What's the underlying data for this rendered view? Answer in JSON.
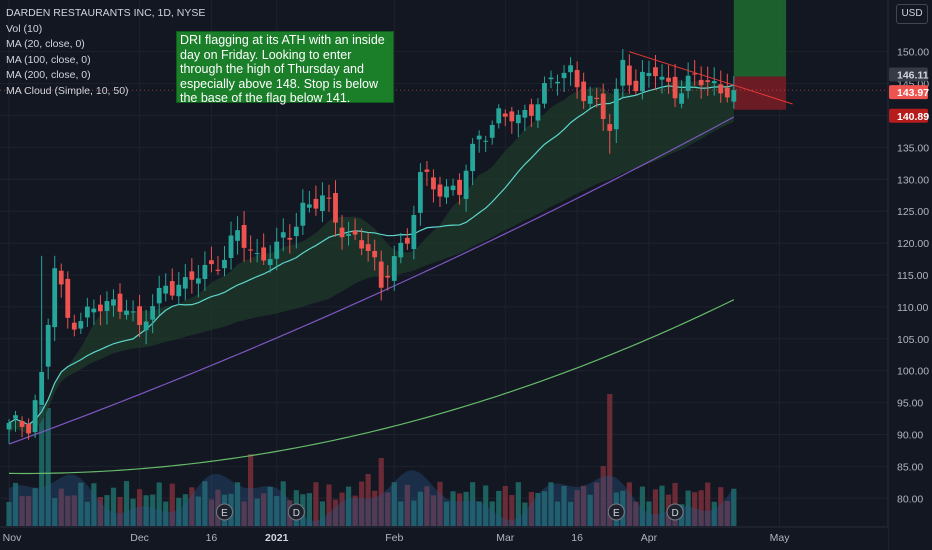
{
  "legend": {
    "title": "DARDEN RESTAURANTS INC, 1D, NYSE",
    "vol": "Vol (10)",
    "ma20": "MA (20, close, 0)",
    "ma100": "MA (100, close, 0)",
    "ma200": "MA (200, close, 0)",
    "ma_cloud": "MA Cloud (Simple, 10, 50)"
  },
  "note": "DRI flagging at its ATH with an inside day on Friday. Looking to enter through the high of Thursday and especially above 148. Stop is below the base of the flag below 141.",
  "currency": "USD",
  "colors": {
    "background": "#131722",
    "up": "#26a69a",
    "down": "#ef5350",
    "ma20": "#5dd6cc",
    "ma100": "#7e57c2",
    "ma200": "#66bb6a",
    "vol_ma": "#2a5a8c",
    "cloud": "#1f3b2a",
    "trendline": "#e53935",
    "target_box": "#1e6f2f",
    "stop_box": "#7a1c24",
    "note_bg": "#1b7f2a"
  },
  "chart_data": {
    "type": "candlestick",
    "ylim": [
      75.5,
      157
    ],
    "y_ticks": [
      80,
      85,
      90,
      95,
      100,
      105,
      110,
      115,
      120,
      125,
      130,
      135,
      140,
      145,
      150
    ],
    "price_labels": [
      {
        "value": 146.11,
        "label": "146.11",
        "kind": "high"
      },
      {
        "value": 143.97,
        "label": "143.97",
        "kind": "last"
      },
      {
        "value": 140.89,
        "label": "140.89",
        "kind": "stop"
      }
    ],
    "x_ticks": [
      {
        "bar": 0,
        "label": "Nov"
      },
      {
        "bar": 20,
        "label": "Dec"
      },
      {
        "bar": 31,
        "label": "16"
      },
      {
        "bar": 41,
        "label": "2021"
      },
      {
        "bar": 59,
        "label": "Feb"
      },
      {
        "bar": 76,
        "label": "Mar"
      },
      {
        "bar": 87,
        "label": "16"
      },
      {
        "bar": 98,
        "label": "Apr"
      },
      {
        "bar": 118,
        "label": "May"
      }
    ],
    "events": [
      {
        "bar": 33,
        "label": "E"
      },
      {
        "bar": 44,
        "label": "D"
      },
      {
        "bar": 93,
        "label": "E"
      },
      {
        "bar": 102,
        "label": "D"
      }
    ],
    "trendline": {
      "from": {
        "bar": 95,
        "price": 150
      },
      "to": {
        "bar": 120,
        "price": 141.8
      }
    },
    "trade_box": {
      "from_bar": 111,
      "to_bar": 119,
      "target": 160,
      "entry": 146.11,
      "stop": 140.89
    },
    "last_close": 143.97
  }
}
